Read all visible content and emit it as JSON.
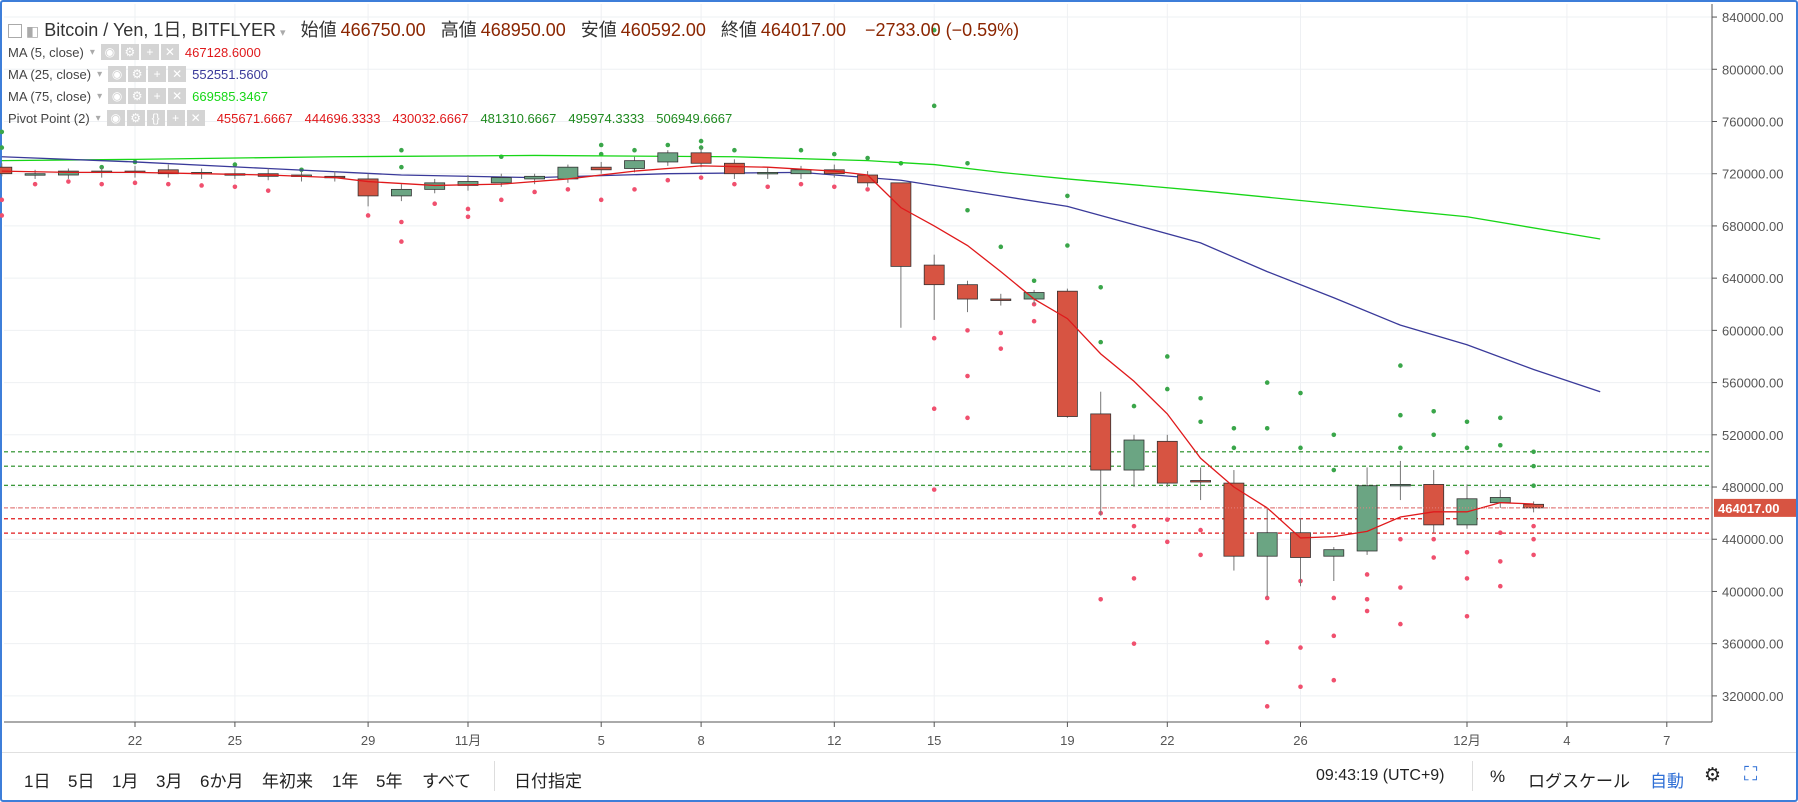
{
  "header": {
    "symbol": "Bitcoin / Yen, 1日, BITFLYER",
    "open_label": "始値",
    "open": "466750.00",
    "high_label": "高値",
    "high": "468950.00",
    "low_label": "安値",
    "low": "460592.00",
    "close_label": "終値",
    "close": "464017.00",
    "change": "−2733.00 (−0.59%)"
  },
  "indicators": [
    {
      "name": "MA (5, close)",
      "value": "467128.6000",
      "color": "#e0191b"
    },
    {
      "name": "MA (25, close)",
      "value": "552551.5600",
      "color": "#3a3a9a"
    },
    {
      "name": "MA (75, close)",
      "value": "669585.3467",
      "color": "#17d617"
    }
  ],
  "pivot": {
    "name": "Pivot Point (2)",
    "values": [
      "455671.6667",
      "444696.3333",
      "430032.6667",
      "481310.6667",
      "495974.3333",
      "506949.6667"
    ],
    "colors": [
      "#e0191b",
      "#e0191b",
      "#e0191b",
      "#1f8a1f",
      "#1f8a1f",
      "#1f8a1f"
    ]
  },
  "price_tag": "464017.00",
  "toolbar": {
    "ranges": [
      "1日",
      "5日",
      "1月",
      "3月",
      "6か月",
      "年初来",
      "1年",
      "5年",
      "すべて"
    ],
    "date_goto": "日付指定",
    "clock": "09:43:19 (UTC+9)",
    "percent": "%",
    "log_scale": "ログスケール",
    "auto": "自動"
  },
  "colors": {
    "up": "#6ba583",
    "down": "#d75442",
    "ma5": "#e0191b",
    "ma25": "#3a3a9a",
    "ma75": "#17d617"
  },
  "chart_data": {
    "type": "candlestick",
    "title": "Bitcoin / Yen, 1日, BITFLYER",
    "ylim": [
      300000,
      850000
    ],
    "y_ticks": [
      320000,
      360000,
      400000,
      440000,
      480000,
      520000,
      560000,
      600000,
      640000,
      680000,
      720000,
      760000,
      800000,
      840000
    ],
    "y_tick_labels": [
      "320000.00",
      "360000.00",
      "400000.00",
      "440000.00",
      "480000.00",
      "520000.00",
      "560000.00",
      "600000.00",
      "640000.00",
      "680000.00",
      "720000.00",
      "760000.00",
      "800000.00",
      "840000.00"
    ],
    "x_tick_labels": [
      {
        "label": "22",
        "day": 22
      },
      {
        "label": "25",
        "day": 25
      },
      {
        "label": "29",
        "day": 29
      },
      {
        "label": "11月",
        "day": 32
      },
      {
        "label": "5",
        "day": 36
      },
      {
        "label": "8",
        "day": 39
      },
      {
        "label": "12",
        "day": 43
      },
      {
        "label": "15",
        "day": 46
      },
      {
        "label": "19",
        "day": 50
      },
      {
        "label": "22",
        "day": 53
      },
      {
        "label": "26",
        "day": 57
      },
      {
        "label": "12月",
        "day": 62
      },
      {
        "label": "4",
        "day": 65
      },
      {
        "label": "7",
        "day": 68
      }
    ],
    "candles": [
      {
        "d": 18,
        "o": 725000,
        "h": 728000,
        "l": 718000,
        "c": 720000
      },
      {
        "d": 19,
        "o": 719000,
        "h": 723000,
        "l": 716000,
        "c": 720000
      },
      {
        "d": 20,
        "o": 719000,
        "h": 724000,
        "l": 716000,
        "c": 722000
      },
      {
        "d": 21,
        "o": 721000,
        "h": 725000,
        "l": 717000,
        "c": 722000
      },
      {
        "d": 22,
        "o": 722000,
        "h": 726000,
        "l": 717000,
        "c": 721000
      },
      {
        "d": 23,
        "o": 723000,
        "h": 727000,
        "l": 717000,
        "c": 720000
      },
      {
        "d": 24,
        "o": 720000,
        "h": 724000,
        "l": 716000,
        "c": 721000
      },
      {
        "d": 25,
        "o": 720000,
        "h": 724000,
        "l": 716000,
        "c": 719000
      },
      {
        "d": 26,
        "o": 720000,
        "h": 724000,
        "l": 715000,
        "c": 718000
      },
      {
        "d": 27,
        "o": 718000,
        "h": 722000,
        "l": 714000,
        "c": 719000
      },
      {
        "d": 28,
        "o": 718000,
        "h": 722000,
        "l": 714000,
        "c": 717000
      },
      {
        "d": 29,
        "o": 716000,
        "h": 720000,
        "l": 695000,
        "c": 703000
      },
      {
        "d": 30,
        "o": 703000,
        "h": 712000,
        "l": 699000,
        "c": 708000
      },
      {
        "d": 31,
        "o": 708000,
        "h": 716000,
        "l": 705000,
        "c": 713000
      },
      {
        "d": 32,
        "o": 711000,
        "h": 719000,
        "l": 707000,
        "c": 714000
      },
      {
        "d": 33,
        "o": 713000,
        "h": 720000,
        "l": 710000,
        "c": 717000
      },
      {
        "d": 34,
        "o": 716000,
        "h": 720000,
        "l": 712000,
        "c": 718000
      },
      {
        "d": 35,
        "o": 716000,
        "h": 727000,
        "l": 713000,
        "c": 725000
      },
      {
        "d": 36,
        "o": 725000,
        "h": 729000,
        "l": 720000,
        "c": 723000
      },
      {
        "d": 37,
        "o": 724000,
        "h": 733000,
        "l": 721000,
        "c": 730000
      },
      {
        "d": 38,
        "o": 729000,
        "h": 738000,
        "l": 726000,
        "c": 736000
      },
      {
        "d": 39,
        "o": 736000,
        "h": 740000,
        "l": 725000,
        "c": 728000
      },
      {
        "d": 40,
        "o": 728000,
        "h": 731000,
        "l": 716000,
        "c": 720000
      },
      {
        "d": 41,
        "o": 720000,
        "h": 725000,
        "l": 716000,
        "c": 721000
      },
      {
        "d": 42,
        "o": 720000,
        "h": 726000,
        "l": 716000,
        "c": 723000
      },
      {
        "d": 43,
        "o": 723000,
        "h": 727000,
        "l": 717000,
        "c": 720000
      },
      {
        "d": 44,
        "o": 719000,
        "h": 722000,
        "l": 710000,
        "c": 713000
      },
      {
        "d": 45,
        "o": 713000,
        "h": 713000,
        "l": 602000,
        "c": 649000
      },
      {
        "d": 46,
        "o": 650000,
        "h": 658000,
        "l": 608000,
        "c": 635000
      },
      {
        "d": 47,
        "o": 635000,
        "h": 638000,
        "l": 614000,
        "c": 624000
      },
      {
        "d": 48,
        "o": 624000,
        "h": 628000,
        "l": 619000,
        "c": 623000
      },
      {
        "d": 49,
        "o": 624000,
        "h": 631000,
        "l": 620000,
        "c": 629000
      },
      {
        "d": 50,
        "o": 630000,
        "h": 632000,
        "l": 533000,
        "c": 534000
      },
      {
        "d": 51,
        "o": 536000,
        "h": 553000,
        "l": 458000,
        "c": 493000
      },
      {
        "d": 52,
        "o": 493000,
        "h": 520000,
        "l": 480000,
        "c": 516000
      },
      {
        "d": 53,
        "o": 515000,
        "h": 520000,
        "l": 480000,
        "c": 483000
      },
      {
        "d": 54,
        "o": 485000,
        "h": 495000,
        "l": 470000,
        "c": 484000
      },
      {
        "d": 55,
        "o": 483000,
        "h": 493000,
        "l": 416000,
        "c": 427000
      },
      {
        "d": 56,
        "o": 427000,
        "h": 464000,
        "l": 396000,
        "c": 445000
      },
      {
        "d": 57,
        "o": 445000,
        "h": 456000,
        "l": 404000,
        "c": 426000
      },
      {
        "d": 58,
        "o": 427000,
        "h": 434000,
        "l": 408000,
        "c": 432000
      },
      {
        "d": 59,
        "o": 431000,
        "h": 495000,
        "l": 428000,
        "c": 481000
      },
      {
        "d": 60,
        "o": 481000,
        "h": 500000,
        "l": 470000,
        "c": 482000
      },
      {
        "d": 61,
        "o": 482000,
        "h": 493000,
        "l": 445000,
        "c": 451000
      },
      {
        "d": 62,
        "o": 451000,
        "h": 482000,
        "l": 448000,
        "c": 471000
      },
      {
        "d": 63,
        "o": 468000,
        "h": 478000,
        "l": 464000,
        "c": 472000
      },
      {
        "d": 64,
        "o": 466750,
        "h": 468950,
        "l": 460592,
        "c": 464017
      }
    ],
    "ma5": [
      [
        18,
        722000
      ],
      [
        20,
        721000
      ],
      [
        22,
        721000
      ],
      [
        24,
        720000
      ],
      [
        26,
        719000
      ],
      [
        28,
        717000
      ],
      [
        29,
        714000
      ],
      [
        31,
        711000
      ],
      [
        33,
        712000
      ],
      [
        35,
        716000
      ],
      [
        37,
        722000
      ],
      [
        39,
        726000
      ],
      [
        41,
        725000
      ],
      [
        43,
        722000
      ],
      [
        44,
        719000
      ],
      [
        45,
        694000
      ],
      [
        46,
        680000
      ],
      [
        47,
        665000
      ],
      [
        48,
        645000
      ],
      [
        49,
        624000
      ],
      [
        50,
        609000
      ],
      [
        51,
        582000
      ],
      [
        52,
        561000
      ],
      [
        53,
        536000
      ],
      [
        54,
        502000
      ],
      [
        55,
        480000
      ],
      [
        56,
        464000
      ],
      [
        57,
        441000
      ],
      [
        58,
        442000
      ],
      [
        59,
        446000
      ],
      [
        60,
        457000
      ],
      [
        61,
        461000
      ],
      [
        62,
        461000
      ],
      [
        63,
        468000
      ],
      [
        64,
        467000
      ]
    ],
    "ma25": [
      [
        18,
        733000
      ],
      [
        22,
        729000
      ],
      [
        26,
        724000
      ],
      [
        30,
        719000
      ],
      [
        34,
        717000
      ],
      [
        38,
        720000
      ],
      [
        42,
        721000
      ],
      [
        45,
        715000
      ],
      [
        46,
        711000
      ],
      [
        48,
        703000
      ],
      [
        50,
        695000
      ],
      [
        52,
        681000
      ],
      [
        54,
        667000
      ],
      [
        56,
        645000
      ],
      [
        58,
        625000
      ],
      [
        60,
        604000
      ],
      [
        62,
        589000
      ],
      [
        64,
        570000
      ],
      [
        66,
        553000
      ]
    ],
    "ma75": [
      [
        18,
        730000
      ],
      [
        22,
        731000
      ],
      [
        28,
        733000
      ],
      [
        34,
        734000
      ],
      [
        40,
        733000
      ],
      [
        44,
        730000
      ],
      [
        46,
        727000
      ],
      [
        48,
        721000
      ],
      [
        50,
        716000
      ],
      [
        54,
        707000
      ],
      [
        58,
        697000
      ],
      [
        62,
        687000
      ],
      [
        66,
        670000
      ]
    ],
    "pivot_dots_up": [
      [
        18,
        752000
      ],
      [
        18,
        740000
      ],
      [
        21,
        725000
      ],
      [
        22,
        729000
      ],
      [
        25,
        727000
      ],
      [
        27,
        723000
      ],
      [
        30,
        738000
      ],
      [
        30,
        725000
      ],
      [
        33,
        733000
      ],
      [
        36,
        742000
      ],
      [
        36,
        735000
      ],
      [
        37,
        738000
      ],
      [
        38,
        742000
      ],
      [
        39,
        745000
      ],
      [
        39,
        740000
      ],
      [
        40,
        738000
      ],
      [
        42,
        738000
      ],
      [
        43,
        735000
      ],
      [
        44,
        732000
      ],
      [
        45,
        728000
      ],
      [
        46,
        830000
      ],
      [
        46,
        772000
      ],
      [
        47,
        728000
      ],
      [
        47,
        692000
      ],
      [
        48,
        664000
      ],
      [
        49,
        638000
      ],
      [
        50,
        703000
      ],
      [
        50,
        665000
      ],
      [
        50,
        600000
      ],
      [
        51,
        633000
      ],
      [
        51,
        591000
      ],
      [
        52,
        542000
      ],
      [
        53,
        580000
      ],
      [
        53,
        555000
      ],
      [
        54,
        548000
      ],
      [
        54,
        530000
      ],
      [
        55,
        525000
      ],
      [
        55,
        510000
      ],
      [
        56,
        560000
      ],
      [
        56,
        525000
      ],
      [
        57,
        552000
      ],
      [
        57,
        510000
      ],
      [
        58,
        520000
      ],
      [
        58,
        493000
      ],
      [
        60,
        573000
      ],
      [
        60,
        535000
      ],
      [
        60,
        510000
      ],
      [
        61,
        538000
      ],
      [
        61,
        520000
      ],
      [
        62,
        530000
      ],
      [
        62,
        510000
      ],
      [
        63,
        533000
      ],
      [
        63,
        512000
      ],
      [
        64,
        507000
      ],
      [
        64,
        496000
      ],
      [
        64,
        481000
      ]
    ],
    "pivot_dots_down": [
      [
        18,
        700000
      ],
      [
        18,
        688000
      ],
      [
        19,
        712000
      ],
      [
        20,
        714000
      ],
      [
        21,
        712000
      ],
      [
        22,
        713000
      ],
      [
        23,
        712000
      ],
      [
        24,
        711000
      ],
      [
        25,
        710000
      ],
      [
        26,
        707000
      ],
      [
        29,
        688000
      ],
      [
        30,
        683000
      ],
      [
        30,
        668000
      ],
      [
        31,
        697000
      ],
      [
        32,
        693000
      ],
      [
        32,
        687000
      ],
      [
        33,
        700000
      ],
      [
        34,
        706000
      ],
      [
        35,
        708000
      ],
      [
        36,
        700000
      ],
      [
        37,
        708000
      ],
      [
        38,
        715000
      ],
      [
        39,
        717000
      ],
      [
        40,
        712000
      ],
      [
        41,
        710000
      ],
      [
        42,
        712000
      ],
      [
        43,
        710000
      ],
      [
        44,
        708000
      ],
      [
        45,
        700000
      ],
      [
        46,
        594000
      ],
      [
        46,
        540000
      ],
      [
        46,
        478000
      ],
      [
        47,
        600000
      ],
      [
        47,
        565000
      ],
      [
        47,
        533000
      ],
      [
        48,
        598000
      ],
      [
        48,
        586000
      ],
      [
        49,
        620000
      ],
      [
        49,
        607000
      ],
      [
        50,
        590000
      ],
      [
        51,
        460000
      ],
      [
        51,
        394000
      ],
      [
        52,
        450000
      ],
      [
        52,
        410000
      ],
      [
        52,
        360000
      ],
      [
        53,
        455000
      ],
      [
        53,
        438000
      ],
      [
        54,
        447000
      ],
      [
        54,
        428000
      ],
      [
        55,
        442000
      ],
      [
        55,
        432000
      ],
      [
        56,
        395000
      ],
      [
        56,
        361000
      ],
      [
        56,
        312000
      ],
      [
        57,
        408000
      ],
      [
        57,
        357000
      ],
      [
        57,
        327000
      ],
      [
        58,
        395000
      ],
      [
        58,
        366000
      ],
      [
        58,
        332000
      ],
      [
        59,
        413000
      ],
      [
        59,
        394000
      ],
      [
        59,
        385000
      ],
      [
        60,
        440000
      ],
      [
        60,
        403000
      ],
      [
        60,
        375000
      ],
      [
        61,
        455000
      ],
      [
        61,
        440000
      ],
      [
        61,
        426000
      ],
      [
        62,
        430000
      ],
      [
        62,
        410000
      ],
      [
        62,
        381000
      ],
      [
        63,
        445000
      ],
      [
        63,
        423000
      ],
      [
        63,
        404000
      ],
      [
        64,
        450000
      ],
      [
        64,
        440000
      ],
      [
        64,
        428000
      ]
    ],
    "hlines": [
      {
        "y": 506949.6667,
        "color": "#1f8a1f"
      },
      {
        "y": 495974.3333,
        "color": "#1f8a1f"
      },
      {
        "y": 481310.6667,
        "color": "#1f8a1f"
      },
      {
        "y": 464017,
        "color": "#e38080"
      },
      {
        "y": 455671.6667,
        "color": "#e0191b"
      },
      {
        "y": 444696.3333,
        "color": "#e0191b"
      }
    ]
  }
}
